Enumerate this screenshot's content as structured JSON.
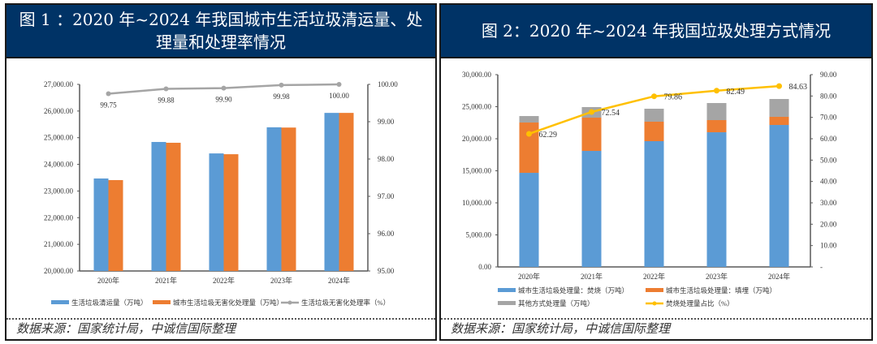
{
  "panels": [
    {
      "title": "图 1 ：2020 年~2024 年我国城市生活垃圾清运量、处理量和处理率情况",
      "source": "数据来源：国家统计局，中诚信国际整理"
    },
    {
      "title": "图 2：2020 年~2024 年我国垃圾处理方式情况",
      "source": "数据来源：国家统计局，中诚信国际整理"
    }
  ],
  "colors": {
    "header_bg": "#003366",
    "blue": "#5B9BD5",
    "orange": "#ED7D31",
    "gray": "#A5A5A5",
    "line_gray": "#A5A5A5",
    "yellow": "#FFC000"
  },
  "chart_data": [
    {
      "type": "bar+line",
      "categories": [
        "2020年",
        "2021年",
        "2022年",
        "2023年",
        "2024年"
      ],
      "series": [
        {
          "name": "生活垃圾清运量（万吨）",
          "kind": "bar",
          "axis": "left",
          "values": [
            23470,
            24840,
            24410,
            25390,
            25930
          ]
        },
        {
          "name": "城市生活垃圾无害化处理量（万吨）",
          "kind": "bar",
          "axis": "left",
          "values": [
            23410,
            24810,
            24380,
            25380,
            25930
          ]
        },
        {
          "name": "生活垃圾无害化处理率（%）",
          "kind": "line",
          "axis": "right",
          "values": [
            99.75,
            99.88,
            99.9,
            99.98,
            100.0
          ],
          "labels": [
            "99.75",
            "99.88",
            "99.90",
            "99.98",
            "100.00"
          ]
        }
      ],
      "y_left": {
        "range": [
          20000,
          27000
        ],
        "ticks": [
          "20,000.00",
          "21,000.00",
          "22,000.00",
          "23,000.00",
          "24,000.00",
          "25,000.00",
          "26,000.00",
          "27,000.00"
        ]
      },
      "y_right": {
        "range": [
          95,
          100
        ],
        "ticks": [
          "95.00",
          "96.00",
          "97.00",
          "98.00",
          "99.00",
          "100.00"
        ]
      },
      "legend": "bottom"
    },
    {
      "type": "stacked-bar+line",
      "categories": [
        "2020年",
        "2021年",
        "2022年",
        "2023年",
        "2024年"
      ],
      "series": [
        {
          "name": "城市生活垃圾处理量：焚烧（万吨）",
          "kind": "bar",
          "axis": "left",
          "values": [
            14680,
            18100,
            19620,
            21010,
            22150
          ]
        },
        {
          "name": "城市生活垃圾处理量：填埋（万吨）",
          "kind": "bar",
          "axis": "left",
          "values": [
            7850,
            5190,
            3040,
            1900,
            1270
          ]
        },
        {
          "name": "其他方式处理量（万吨）",
          "kind": "bar",
          "axis": "left",
          "values": [
            1010,
            1650,
            2020,
            2660,
            2780
          ]
        },
        {
          "name": "焚烧处理量占比（%）",
          "kind": "line",
          "axis": "right",
          "values": [
            62.29,
            72.54,
            79.86,
            82.49,
            84.63
          ],
          "labels": [
            "62.29",
            "72.54",
            "79.86",
            "82.49",
            "84.63"
          ]
        }
      ],
      "y_left": {
        "range": [
          0,
          30000
        ],
        "ticks": [
          "0.00",
          "5,000.00",
          "10,000.00",
          "15,000.00",
          "20,000.00",
          "25,000.00",
          "30,000.00"
        ]
      },
      "y_right": {
        "range": [
          0,
          90
        ],
        "ticks": [
          "-",
          "10.00",
          "20.00",
          "30.00",
          "40.00",
          "50.00",
          "60.00",
          "70.00",
          "80.00",
          "90.00"
        ]
      },
      "legend": "bottom"
    }
  ]
}
